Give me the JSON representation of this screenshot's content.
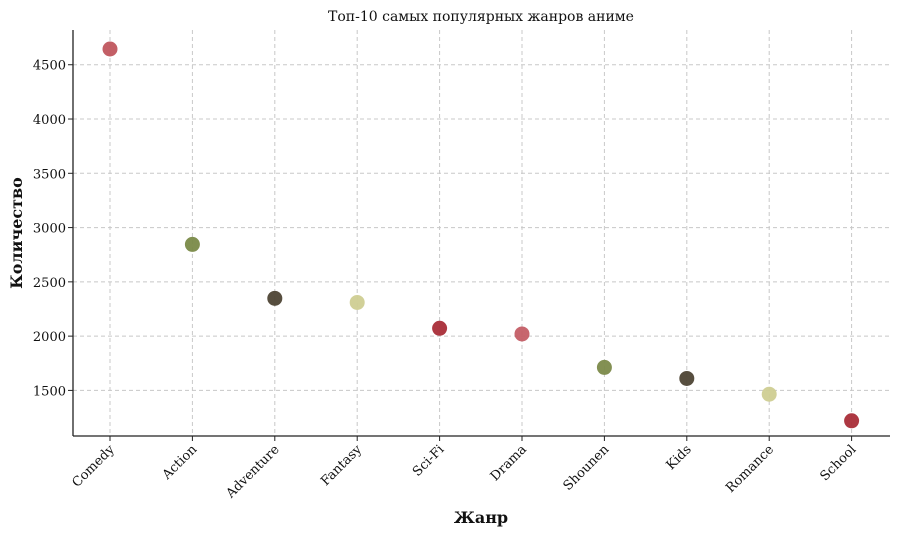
{
  "chart_data": {
    "type": "scatter",
    "title": "Топ-10 самых популярных жанров аниме",
    "xlabel": "Жанр",
    "ylabel": "Количество",
    "categories": [
      "Comedy",
      "Action",
      "Adventure",
      "Fantasy",
      "Sci-Fi",
      "Drama",
      "Shounen",
      "Kids",
      "Romance",
      "School"
    ],
    "values": [
      4645,
      2845,
      2348,
      2310,
      2072,
      2020,
      1712,
      1610,
      1465,
      1220
    ],
    "colors": [
      "#c0565e",
      "#7a8a48",
      "#4e4535",
      "#cfcd92",
      "#a92d38",
      "#c45e66",
      "#7c8a4a",
      "#4e4535",
      "#cfcd92",
      "#a92d38"
    ],
    "ylim": [
      1080,
      4820
    ],
    "yticks": [
      1500,
      2000,
      2500,
      3000,
      3500,
      4000,
      4500
    ],
    "grid": true,
    "legend": "none"
  }
}
